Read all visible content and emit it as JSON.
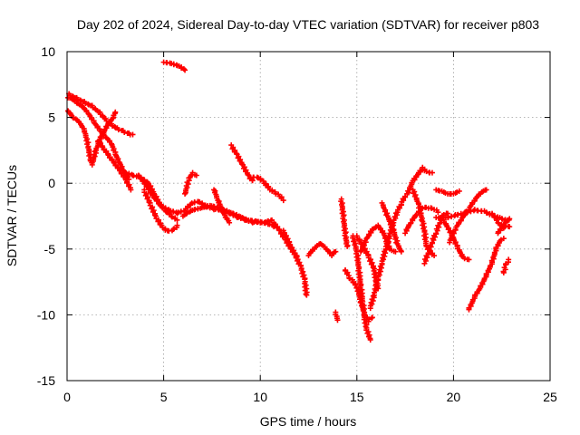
{
  "chart_data": {
    "type": "scatter",
    "title": "Day 202 of 2024, Sidereal Day-to-day VTEC variation (SDTVAR) for receiver p803",
    "xlabel": "GPS time / hours",
    "ylabel": "SDTVAR / TECUs",
    "xlim": [
      0,
      25
    ],
    "ylim": [
      -15,
      10
    ],
    "xticks": [
      "0",
      "5",
      "10",
      "15",
      "20",
      "25"
    ],
    "yticks": [
      "10",
      "5",
      "0",
      "-5",
      "-10",
      "-15"
    ],
    "grid": true,
    "legend": "none",
    "marker": "plus",
    "color": "#ff0000",
    "series": [
      {
        "points": [
          [
            0.05,
            6.5
          ],
          [
            0.25,
            6.4
          ],
          [
            0.5,
            6.1
          ],
          [
            0.8,
            5.8
          ],
          [
            1.1,
            5.3
          ],
          [
            1.4,
            4.6
          ],
          [
            1.7,
            4.0
          ],
          [
            2.0,
            3.5
          ],
          [
            2.3,
            3.0
          ],
          [
            2.5,
            2.2
          ],
          [
            2.7,
            1.6
          ],
          [
            2.9,
            1.0
          ],
          [
            3.1,
            0.6
          ],
          [
            3.2,
            0.3
          ]
        ]
      },
      {
        "points": [
          [
            0.05,
            5.5
          ],
          [
            0.3,
            5.0
          ],
          [
            0.6,
            4.7
          ],
          [
            0.9,
            4.0
          ],
          [
            1.1,
            2.8
          ],
          [
            1.2,
            1.8
          ],
          [
            1.3,
            1.4
          ],
          [
            1.5,
            2.5
          ],
          [
            1.8,
            3.6
          ],
          [
            2.1,
            4.4
          ],
          [
            2.4,
            5.0
          ],
          [
            2.5,
            5.4
          ]
        ]
      },
      {
        "points": [
          [
            0.1,
            6.8
          ],
          [
            0.5,
            6.5
          ],
          [
            0.9,
            6.2
          ],
          [
            1.3,
            5.9
          ],
          [
            1.7,
            5.4
          ],
          [
            2.0,
            4.9
          ],
          [
            2.3,
            4.5
          ],
          [
            2.6,
            4.2
          ],
          [
            2.9,
            4.0
          ],
          [
            3.2,
            3.8
          ],
          [
            3.4,
            3.7
          ]
        ]
      },
      {
        "points": [
          [
            1.6,
            3.2
          ],
          [
            1.9,
            2.6
          ],
          [
            2.2,
            2.0
          ],
          [
            2.5,
            1.4
          ],
          [
            2.8,
            0.8
          ],
          [
            3.1,
            0.1
          ],
          [
            3.3,
            -0.5
          ]
        ]
      },
      {
        "points": [
          [
            3.0,
            0.8
          ],
          [
            3.4,
            0.6
          ],
          [
            3.8,
            0.4
          ],
          [
            4.2,
            0.0
          ],
          [
            4.5,
            -0.8
          ],
          [
            4.8,
            -1.6
          ],
          [
            5.1,
            -2.1
          ],
          [
            5.4,
            -2.5
          ],
          [
            5.7,
            -2.8
          ]
        ]
      },
      {
        "points": [
          [
            4.0,
            -0.5
          ],
          [
            4.3,
            -1.5
          ],
          [
            4.6,
            -2.5
          ],
          [
            4.9,
            -3.2
          ],
          [
            5.2,
            -3.6
          ],
          [
            5.5,
            -3.5
          ],
          [
            5.7,
            -3.2
          ]
        ]
      },
      {
        "points": [
          [
            3.7,
            0.6
          ],
          [
            4.1,
            -0.2
          ],
          [
            4.5,
            -1.1
          ],
          [
            4.9,
            -1.8
          ],
          [
            5.3,
            -2.1
          ],
          [
            5.7,
            -2.3
          ],
          [
            6.1,
            -2.1
          ],
          [
            6.4,
            -1.6
          ],
          [
            6.8,
            -1.4
          ],
          [
            7.2,
            -1.8
          ],
          [
            7.6,
            -2.0
          ],
          [
            8.0,
            -2.1
          ],
          [
            8.4,
            -2.3
          ],
          [
            8.8,
            -2.6
          ],
          [
            9.2,
            -2.8
          ],
          [
            9.6,
            -3.0
          ],
          [
            10.0,
            -3.0
          ],
          [
            10.4,
            -3.1
          ],
          [
            10.7,
            -3.3
          ]
        ]
      },
      {
        "points": [
          [
            6.0,
            -2.5
          ],
          [
            6.4,
            -2.1
          ],
          [
            6.9,
            -1.9
          ],
          [
            7.4,
            -1.7
          ],
          [
            7.9,
            -1.9
          ],
          [
            8.4,
            -2.2
          ],
          [
            8.9,
            -2.5
          ],
          [
            9.3,
            -2.8
          ],
          [
            9.8,
            -2.9
          ],
          [
            10.2,
            -3.0
          ],
          [
            10.6,
            -2.8
          ]
        ]
      },
      {
        "points": [
          [
            6.1,
            -0.8
          ],
          [
            6.3,
            0.4
          ],
          [
            6.5,
            0.8
          ],
          [
            6.7,
            0.6
          ]
        ]
      },
      {
        "points": [
          [
            7.6,
            -0.5
          ],
          [
            7.8,
            -1.3
          ],
          [
            8.0,
            -2.0
          ],
          [
            8.2,
            -2.6
          ],
          [
            8.4,
            -3.0
          ]
        ]
      },
      {
        "points": [
          [
            5.0,
            9.2
          ],
          [
            5.4,
            9.1
          ],
          [
            5.8,
            8.9
          ],
          [
            6.1,
            8.6
          ]
        ]
      },
      {
        "points": [
          [
            8.5,
            2.9
          ],
          [
            8.8,
            2.2
          ],
          [
            9.1,
            1.4
          ],
          [
            9.4,
            0.6
          ],
          [
            9.6,
            0.2
          ]
        ]
      },
      {
        "points": [
          [
            9.5,
            0.4
          ],
          [
            9.9,
            0.4
          ],
          [
            10.2,
            0.0
          ],
          [
            10.5,
            -0.5
          ],
          [
            10.8,
            -0.8
          ],
          [
            11.0,
            -1.0
          ],
          [
            11.2,
            -1.3
          ]
        ]
      },
      {
        "points": [
          [
            10.7,
            -3.0
          ],
          [
            11.0,
            -3.6
          ],
          [
            11.3,
            -4.3
          ],
          [
            11.6,
            -5.0
          ],
          [
            11.9,
            -5.6
          ]
        ]
      },
      {
        "points": [
          [
            11.2,
            -3.6
          ],
          [
            11.5,
            -4.5
          ],
          [
            11.8,
            -5.4
          ],
          [
            12.1,
            -6.3
          ],
          [
            12.3,
            -7.3
          ],
          [
            12.4,
            -8.5
          ]
        ]
      },
      {
        "points": [
          [
            12.5,
            -5.5
          ],
          [
            12.8,
            -5.0
          ],
          [
            13.1,
            -4.6
          ],
          [
            13.4,
            -5.0
          ],
          [
            13.7,
            -5.5
          ],
          [
            13.9,
            -5.2
          ]
        ]
      },
      {
        "points": [
          [
            13.9,
            -9.8
          ],
          [
            14.0,
            -10.4
          ]
        ]
      },
      {
        "points": [
          [
            14.2,
            -1.2
          ],
          [
            14.3,
            -2.5
          ],
          [
            14.4,
            -3.8
          ],
          [
            14.5,
            -4.8
          ]
        ]
      },
      {
        "points": [
          [
            14.4,
            -6.6
          ],
          [
            14.6,
            -7.2
          ],
          [
            14.8,
            -7.5
          ],
          [
            15.0,
            -7.9
          ],
          [
            15.2,
            -9.0
          ],
          [
            15.4,
            -10.0
          ],
          [
            15.6,
            -10.5
          ],
          [
            15.8,
            -10.2
          ]
        ]
      },
      {
        "points": [
          [
            14.8,
            -4.0
          ],
          [
            15.0,
            -5.2
          ],
          [
            15.1,
            -6.5
          ],
          [
            15.2,
            -7.8
          ],
          [
            15.3,
            -9.0
          ],
          [
            15.4,
            -10.2
          ],
          [
            15.5,
            -11.0
          ],
          [
            15.7,
            -11.9
          ]
        ]
      },
      {
        "points": [
          [
            15.0,
            -4.0
          ],
          [
            15.3,
            -4.7
          ],
          [
            15.6,
            -5.5
          ],
          [
            15.9,
            -6.5
          ],
          [
            16.0,
            -7.5
          ],
          [
            16.1,
            -8.0
          ]
        ]
      },
      {
        "points": [
          [
            15.7,
            -9.5
          ],
          [
            15.9,
            -8.5
          ],
          [
            16.1,
            -7.3
          ],
          [
            16.3,
            -6.1
          ],
          [
            16.5,
            -5.0
          ],
          [
            16.7,
            -4.0
          ],
          [
            16.9,
            -3.0
          ],
          [
            17.1,
            -2.2
          ],
          [
            17.3,
            -1.6
          ],
          [
            17.5,
            -1.0
          ]
        ]
      },
      {
        "points": [
          [
            15.2,
            -5.2
          ],
          [
            15.5,
            -4.2
          ],
          [
            15.8,
            -3.5
          ],
          [
            16.1,
            -3.2
          ],
          [
            16.4,
            -3.8
          ],
          [
            16.7,
            -5.0
          ],
          [
            17.0,
            -5.2
          ]
        ]
      },
      {
        "points": [
          [
            16.3,
            -1.5
          ],
          [
            16.6,
            -2.5
          ],
          [
            16.9,
            -3.6
          ],
          [
            17.1,
            -4.6
          ],
          [
            17.3,
            -5.2
          ]
        ]
      },
      {
        "points": [
          [
            17.5,
            -3.8
          ],
          [
            17.8,
            -3.0
          ],
          [
            18.1,
            -2.4
          ],
          [
            18.4,
            -1.9
          ],
          [
            18.7,
            -1.9
          ],
          [
            19.0,
            -2.0
          ],
          [
            19.2,
            -2.2
          ]
        ]
      },
      {
        "points": [
          [
            17.6,
            -0.8
          ],
          [
            17.9,
            0.2
          ],
          [
            18.2,
            0.8
          ],
          [
            18.4,
            1.2
          ],
          [
            18.6,
            0.9
          ],
          [
            18.9,
            0.8
          ]
        ]
      },
      {
        "points": [
          [
            17.9,
            -0.5
          ],
          [
            18.2,
            -1.6
          ],
          [
            18.4,
            -2.9
          ],
          [
            18.5,
            -3.7
          ],
          [
            18.6,
            -4.8
          ],
          [
            18.8,
            -5.2
          ],
          [
            19.0,
            -5.5
          ]
        ]
      },
      {
        "points": [
          [
            18.5,
            -6.1
          ],
          [
            18.7,
            -5.3
          ],
          [
            18.9,
            -4.5
          ],
          [
            19.1,
            -3.8
          ],
          [
            19.3,
            -3.0
          ],
          [
            19.5,
            -2.4
          ],
          [
            19.7,
            -2.3
          ]
        ]
      },
      {
        "points": [
          [
            19.1,
            -2.6
          ],
          [
            19.6,
            -2.6
          ],
          [
            20.1,
            -2.4
          ],
          [
            20.6,
            -2.2
          ],
          [
            21.1,
            -2.0
          ],
          [
            21.6,
            -2.1
          ],
          [
            22.0,
            -2.4
          ],
          [
            22.4,
            -2.6
          ],
          [
            22.8,
            -2.8
          ]
        ]
      },
      {
        "points": [
          [
            19.1,
            -0.5
          ],
          [
            19.4,
            -0.6
          ],
          [
            19.7,
            -0.8
          ],
          [
            20.0,
            -0.8
          ],
          [
            20.3,
            -0.6
          ]
        ]
      },
      {
        "points": [
          [
            19.8,
            -4.5
          ],
          [
            20.1,
            -3.5
          ],
          [
            20.4,
            -2.8
          ],
          [
            20.8,
            -2.0
          ],
          [
            21.1,
            -1.3
          ],
          [
            21.4,
            -0.8
          ],
          [
            21.7,
            -0.5
          ]
        ]
      },
      {
        "points": [
          [
            19.5,
            -2.8
          ],
          [
            19.9,
            -3.8
          ],
          [
            20.2,
            -4.8
          ],
          [
            20.5,
            -5.6
          ],
          [
            20.8,
            -5.8
          ]
        ]
      },
      {
        "points": [
          [
            20.8,
            -9.6
          ],
          [
            21.1,
            -8.6
          ],
          [
            21.4,
            -7.9
          ],
          [
            21.7,
            -7.0
          ],
          [
            22.0,
            -6.0
          ],
          [
            22.2,
            -5.0
          ],
          [
            22.4,
            -4.4
          ],
          [
            22.6,
            -4.2
          ]
        ]
      },
      {
        "points": [
          [
            22.0,
            -2.3
          ],
          [
            22.3,
            -3.0
          ],
          [
            22.6,
            -3.4
          ],
          [
            22.9,
            -3.3
          ]
        ]
      },
      {
        "points": [
          [
            22.6,
            -6.8
          ],
          [
            22.7,
            -6.2
          ],
          [
            22.85,
            -5.8
          ]
        ]
      },
      {
        "points": [
          [
            22.3,
            -3.8
          ],
          [
            22.5,
            -3.4
          ],
          [
            22.7,
            -3.0
          ],
          [
            22.9,
            -2.7
          ]
        ]
      }
    ]
  }
}
